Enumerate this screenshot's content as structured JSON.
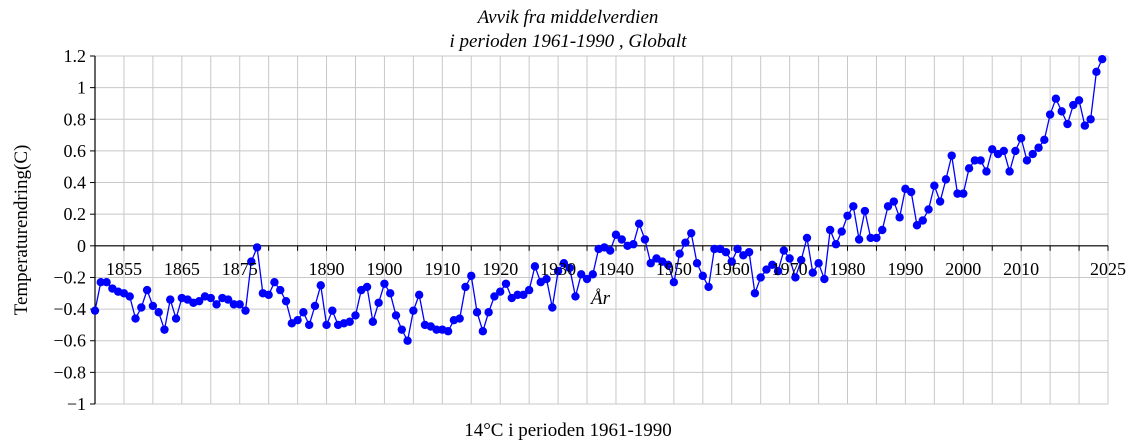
{
  "chart_data": {
    "type": "line",
    "title": "Avvik fra middelverdien",
    "subtitle": "i perioden 1961-1990 , Globalt",
    "ylabel": "Temperaturendring(C)",
    "xlabel": "14°C i perioden 1961-1990",
    "x_axis_label": "År",
    "xlim": [
      1850,
      2025
    ],
    "ylim": [
      -1,
      1.2
    ],
    "y_ticks": [
      1.2,
      1,
      0.8,
      0.6,
      0.4,
      0.2,
      0,
      -0.2,
      -0.4,
      -0.6,
      -0.8,
      -1
    ],
    "y_tick_labels": [
      "1.2",
      "1",
      "0.8",
      "0.6",
      "0.4",
      "0.2",
      "0",
      "−0.2",
      "−0.4",
      "−0.6",
      "−0.8",
      "−1"
    ],
    "x_tick_labels": [
      {
        "x": 1855,
        "label": "1855"
      },
      {
        "x": 1865,
        "label": "1865"
      },
      {
        "x": 1875,
        "label": "1875"
      },
      {
        "x": 1890,
        "label": "1890"
      },
      {
        "x": 1900,
        "label": "1900"
      },
      {
        "x": 1910,
        "label": "1910"
      },
      {
        "x": 1920,
        "label": "1920"
      },
      {
        "x": 1930,
        "label": "1930"
      },
      {
        "x": 1940,
        "label": "1940"
      },
      {
        "x": 1950,
        "label": "1950"
      },
      {
        "x": 1960,
        "label": "1960"
      },
      {
        "x": 1970,
        "label": "1970"
      },
      {
        "x": 1980,
        "label": "1980"
      },
      {
        "x": 1990,
        "label": "1990"
      },
      {
        "x": 2000,
        "label": "2000"
      },
      {
        "x": 2010,
        "label": "2010"
      },
      {
        "x": 2025,
        "label": "2025"
      }
    ],
    "grid": true,
    "series_color": "#0000ff",
    "x": [
      1850,
      1851,
      1852,
      1853,
      1854,
      1855,
      1856,
      1857,
      1858,
      1859,
      1860,
      1861,
      1862,
      1863,
      1864,
      1865,
      1866,
      1867,
      1868,
      1869,
      1870,
      1871,
      1872,
      1873,
      1874,
      1875,
      1876,
      1877,
      1878,
      1879,
      1880,
      1881,
      1882,
      1883,
      1884,
      1885,
      1886,
      1887,
      1888,
      1889,
      1890,
      1891,
      1892,
      1893,
      1894,
      1895,
      1896,
      1897,
      1898,
      1899,
      1900,
      1901,
      1902,
      1903,
      1904,
      1905,
      1906,
      1907,
      1908,
      1909,
      1910,
      1911,
      1912,
      1913,
      1914,
      1915,
      1916,
      1917,
      1918,
      1919,
      1920,
      1921,
      1922,
      1923,
      1924,
      1925,
      1926,
      1927,
      1928,
      1929,
      1930,
      1931,
      1932,
      1933,
      1934,
      1935,
      1936,
      1937,
      1938,
      1939,
      1940,
      1941,
      1942,
      1943,
      1944,
      1945,
      1946,
      1947,
      1948,
      1949,
      1950,
      1951,
      1952,
      1953,
      1954,
      1955,
      1956,
      1957,
      1958,
      1959,
      1960,
      1961,
      1962,
      1963,
      1964,
      1965,
      1966,
      1967,
      1968,
      1969,
      1970,
      1971,
      1972,
      1973,
      1974,
      1975,
      1976,
      1977,
      1978,
      1979,
      1980,
      1981,
      1982,
      1983,
      1984,
      1985,
      1986,
      1987,
      1988,
      1989,
      1990,
      1991,
      1992,
      1993,
      1994,
      1995,
      1996,
      1997,
      1998,
      1999,
      2000,
      2001,
      2002,
      2003,
      2004,
      2005,
      2006,
      2007,
      2008,
      2009,
      2010,
      2011,
      2012,
      2013,
      2014,
      2015,
      2016,
      2017,
      2018,
      2019,
      2020,
      2021,
      2022,
      2023,
      2024
    ],
    "values": [
      -0.41,
      -0.23,
      -0.23,
      -0.27,
      -0.29,
      -0.3,
      -0.32,
      -0.46,
      -0.39,
      -0.28,
      -0.38,
      -0.42,
      -0.53,
      -0.34,
      -0.46,
      -0.33,
      -0.34,
      -0.36,
      -0.35,
      -0.32,
      -0.33,
      -0.37,
      -0.33,
      -0.34,
      -0.37,
      -0.37,
      -0.41,
      -0.1,
      -0.01,
      -0.3,
      -0.31,
      -0.23,
      -0.28,
      -0.35,
      -0.49,
      -0.47,
      -0.42,
      -0.5,
      -0.38,
      -0.25,
      -0.5,
      -0.41,
      -0.5,
      -0.49,
      -0.48,
      -0.44,
      -0.28,
      -0.26,
      -0.48,
      -0.36,
      -0.24,
      -0.3,
      -0.44,
      -0.53,
      -0.6,
      -0.41,
      -0.31,
      -0.5,
      -0.51,
      -0.53,
      -0.53,
      -0.54,
      -0.47,
      -0.46,
      -0.26,
      -0.19,
      -0.42,
      -0.54,
      -0.42,
      -0.32,
      -0.29,
      -0.24,
      -0.33,
      -0.31,
      -0.31,
      -0.28,
      -0.13,
      -0.23,
      -0.21,
      -0.39,
      -0.16,
      -0.11,
      -0.14,
      -0.32,
      -0.18,
      -0.21,
      -0.18,
      -0.02,
      -0.01,
      -0.03,
      0.07,
      0.04,
      0.0,
      0.01,
      0.14,
      0.04,
      -0.11,
      -0.08,
      -0.1,
      -0.12,
      -0.23,
      -0.05,
      0.02,
      0.08,
      -0.11,
      -0.19,
      -0.26,
      -0.02,
      -0.02,
      -0.04,
      -0.1,
      -0.02,
      -0.06,
      -0.04,
      -0.3,
      -0.2,
      -0.15,
      -0.12,
      -0.16,
      -0.03,
      -0.08,
      -0.2,
      -0.09,
      0.05,
      -0.17,
      -0.11,
      -0.21,
      0.1,
      0.01,
      0.09,
      0.19,
      0.25,
      0.04,
      0.22,
      0.05,
      0.05,
      0.1,
      0.25,
      0.28,
      0.18,
      0.36,
      0.34,
      0.13,
      0.16,
      0.23,
      0.38,
      0.28,
      0.42,
      0.57,
      0.33,
      0.33,
      0.49,
      0.54,
      0.54,
      0.47,
      0.61,
      0.58,
      0.6,
      0.47,
      0.6,
      0.68,
      0.54,
      0.58,
      0.62,
      0.67,
      0.83,
      0.93,
      0.85,
      0.77,
      0.89,
      0.92,
      0.76,
      0.8,
      1.1,
      1.18
    ]
  }
}
